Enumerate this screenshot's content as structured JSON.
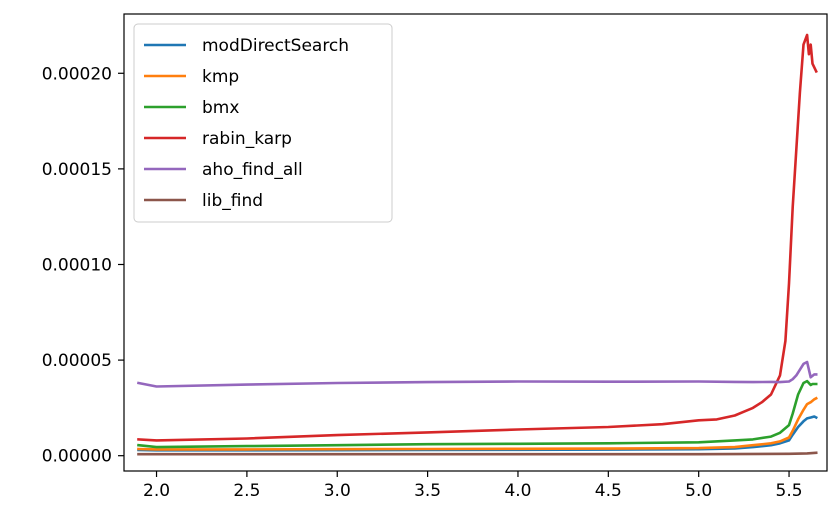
{
  "chart_data": {
    "type": "line",
    "title": "",
    "xlabel": "",
    "ylabel": "",
    "xlim": [
      1.82,
      5.71
    ],
    "ylim": [
      -8e-06,
      0.000231
    ],
    "x_ticks": [
      2.0,
      2.5,
      3.0,
      3.5,
      4.0,
      4.5,
      5.0,
      5.5
    ],
    "x_tick_labels": [
      "2.0",
      "2.5",
      "3.0",
      "3.5",
      "4.0",
      "4.5",
      "5.0",
      "5.5"
    ],
    "y_ticks": [
      0,
      5e-05,
      0.0001,
      0.00015,
      0.0002
    ],
    "y_tick_labels": [
      "0.00000",
      "0.00005",
      "0.00010",
      "0.00015",
      "0.00020"
    ],
    "grid": false,
    "legend": {
      "placement": "top-left"
    },
    "series": [
      {
        "name": "modDirectSearch",
        "color": "#1f77b4",
        "x": [
          1.9,
          2.0,
          2.5,
          3.0,
          3.5,
          4.0,
          4.5,
          5.0,
          5.2,
          5.3,
          5.4,
          5.45,
          5.5,
          5.52,
          5.55,
          5.58,
          5.6,
          5.62,
          5.64,
          5.65
        ],
        "y": [
          3e-06,
          2.8e-06,
          2.8e-06,
          2.9e-06,
          3e-06,
          3.1e-06,
          3.2e-06,
          3.4e-06,
          3.8e-06,
          4.5e-06,
          5.5e-06,
          6.5e-06,
          8e-06,
          1.1e-05,
          1.5e-05,
          1.8e-05,
          1.95e-05,
          2e-05,
          2.05e-05,
          2e-05
        ]
      },
      {
        "name": "kmp",
        "color": "#ff7f0e",
        "x": [
          1.9,
          2.0,
          2.5,
          3.0,
          3.5,
          4.0,
          4.5,
          5.0,
          5.2,
          5.3,
          5.4,
          5.45,
          5.5,
          5.52,
          5.55,
          5.58,
          5.6,
          5.62,
          5.64,
          5.65
        ],
        "y": [
          3.5e-06,
          3.3e-06,
          3.3e-06,
          3.4e-06,
          3.5e-06,
          3.6e-06,
          3.7e-06,
          4e-06,
          4.5e-06,
          5.5e-06,
          6.5e-06,
          7.5e-06,
          9.5e-06,
          1.3e-05,
          1.9e-05,
          2.4e-05,
          2.7e-05,
          2.8e-05,
          2.95e-05,
          3e-05
        ]
      },
      {
        "name": "bmx",
        "color": "#2ca02c",
        "x": [
          1.9,
          2.0,
          2.5,
          3.0,
          3.5,
          4.0,
          4.5,
          5.0,
          5.2,
          5.3,
          5.4,
          5.45,
          5.5,
          5.52,
          5.55,
          5.58,
          5.6,
          5.62,
          5.63,
          5.65
        ],
        "y": [
          5.5e-06,
          4.5e-06,
          5e-06,
          5.5e-06,
          6e-06,
          6.2e-06,
          6.5e-06,
          7e-06,
          8e-06,
          8.5e-06,
          1e-05,
          1.2e-05,
          1.6e-05,
          2.2e-05,
          3.2e-05,
          3.8e-05,
          3.9e-05,
          3.7e-05,
          3.75e-05,
          3.75e-05
        ]
      },
      {
        "name": "rabin_karp",
        "color": "#d62728",
        "x": [
          1.9,
          2.0,
          2.5,
          3.0,
          3.5,
          4.0,
          4.5,
          4.8,
          5.0,
          5.1,
          5.2,
          5.25,
          5.3,
          5.35,
          5.4,
          5.45,
          5.48,
          5.5,
          5.52,
          5.54,
          5.56,
          5.58,
          5.6,
          5.61,
          5.62,
          5.63,
          5.65
        ],
        "y": [
          8.5e-06,
          8e-06,
          9e-06,
          1.08e-05,
          1.22e-05,
          1.37e-05,
          1.5e-05,
          1.65e-05,
          1.85e-05,
          1.9e-05,
          2.1e-05,
          2.3e-05,
          2.5e-05,
          2.8e-05,
          3.2e-05,
          4.2e-05,
          6e-05,
          9e-05,
          0.00013,
          0.00016,
          0.00019,
          0.000215,
          0.00022,
          0.00021,
          0.000215,
          0.000205,
          0.000201
        ]
      },
      {
        "name": "aho_find_all",
        "color": "#9467bd",
        "x": [
          1.9,
          2.0,
          2.5,
          3.0,
          3.5,
          4.0,
          4.5,
          5.0,
          5.2,
          5.3,
          5.4,
          5.45,
          5.5,
          5.52,
          5.54,
          5.56,
          5.58,
          5.6,
          5.62,
          5.64,
          5.65
        ],
        "y": [
          3.8e-05,
          3.62e-05,
          3.72e-05,
          3.8e-05,
          3.85e-05,
          3.88e-05,
          3.87e-05,
          3.88e-05,
          3.86e-05,
          3.85e-05,
          3.86e-05,
          3.85e-05,
          3.88e-05,
          4e-05,
          4.2e-05,
          4.5e-05,
          4.8e-05,
          4.9e-05,
          4.1e-05,
          4.25e-05,
          4.25e-05
        ]
      },
      {
        "name": "lib_find",
        "color": "#8c564b",
        "x": [
          1.9,
          2.5,
          3.0,
          3.5,
          4.0,
          4.5,
          5.0,
          5.5,
          5.6,
          5.65
        ],
        "y": [
          8e-07,
          8e-07,
          8e-07,
          8e-07,
          8e-07,
          8e-07,
          8e-07,
          1e-06,
          1.2e-06,
          1.5e-06
        ]
      }
    ]
  }
}
